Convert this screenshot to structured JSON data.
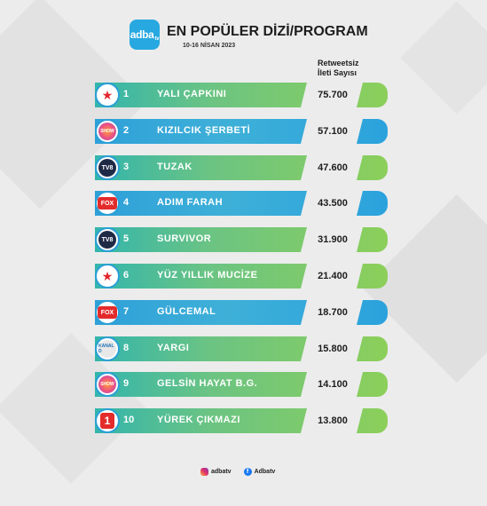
{
  "header": {
    "logo_text": "adba",
    "logo_suffix": "tv",
    "title": "EN POPÜLER DİZİ/PROGRAM",
    "subtitle": "10-16 NİSAN 2023",
    "column_line1": "Retweetsiz",
    "column_line2": "İleti Sayısı"
  },
  "rows": [
    {
      "rank": "1",
      "name": "YALI ÇAPKINI",
      "value": "75.700",
      "channel": "atv-logo",
      "channel_text": "★",
      "color": "green"
    },
    {
      "rank": "2",
      "name": "KIZILCIK ŞERBETİ",
      "value": "57.100",
      "channel": "show-logo",
      "channel_text": "SHOW",
      "color": "blue"
    },
    {
      "rank": "3",
      "name": "TUZAK",
      "value": "47.600",
      "channel": "tv8-logo",
      "channel_text": "TV8",
      "color": "green"
    },
    {
      "rank": "4",
      "name": "ADIM FARAH",
      "value": "43.500",
      "channel": "fox-logo",
      "channel_text": "FOX",
      "color": "blue"
    },
    {
      "rank": "5",
      "name": "SURVIVOR",
      "value": "31.900",
      "channel": "tv8-logo",
      "channel_text": "TV8",
      "color": "green"
    },
    {
      "rank": "6",
      "name": "YÜZ YILLIK MUCİZE",
      "value": "21.400",
      "channel": "atv-logo",
      "channel_text": "★",
      "color": "green"
    },
    {
      "rank": "7",
      "name": "GÜLCEMAL",
      "value": "18.700",
      "channel": "fox-logo",
      "channel_text": "FOX",
      "color": "blue"
    },
    {
      "rank": "8",
      "name": "YARGI",
      "value": "15.800",
      "channel": "kanald-logo",
      "channel_text": "KANAL D",
      "color": "green"
    },
    {
      "rank": "9",
      "name": "GELSİN HAYAT B.G.",
      "value": "14.100",
      "channel": "show-logo",
      "channel_text": "SHOW",
      "color": "green"
    },
    {
      "rank": "10",
      "name": "YÜREK ÇIKMAZI",
      "value": "13.800",
      "channel": "star-one-logo",
      "channel_text": "1",
      "color": "green"
    }
  ],
  "footer": {
    "instagram": "adbatv",
    "facebook": "Adbatv"
  }
}
